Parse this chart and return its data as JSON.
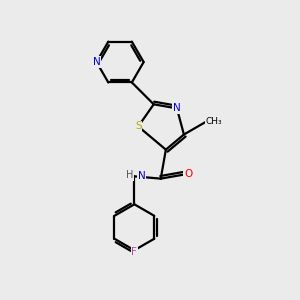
{
  "background_color": "#ebebeb",
  "atom_colors": {
    "C": "#000000",
    "N": "#0000cc",
    "O": "#ff0000",
    "S": "#bbaa00",
    "F": "#bb44bb",
    "H": "#555555"
  },
  "bond_color": "#000000",
  "bond_width": 1.6
}
